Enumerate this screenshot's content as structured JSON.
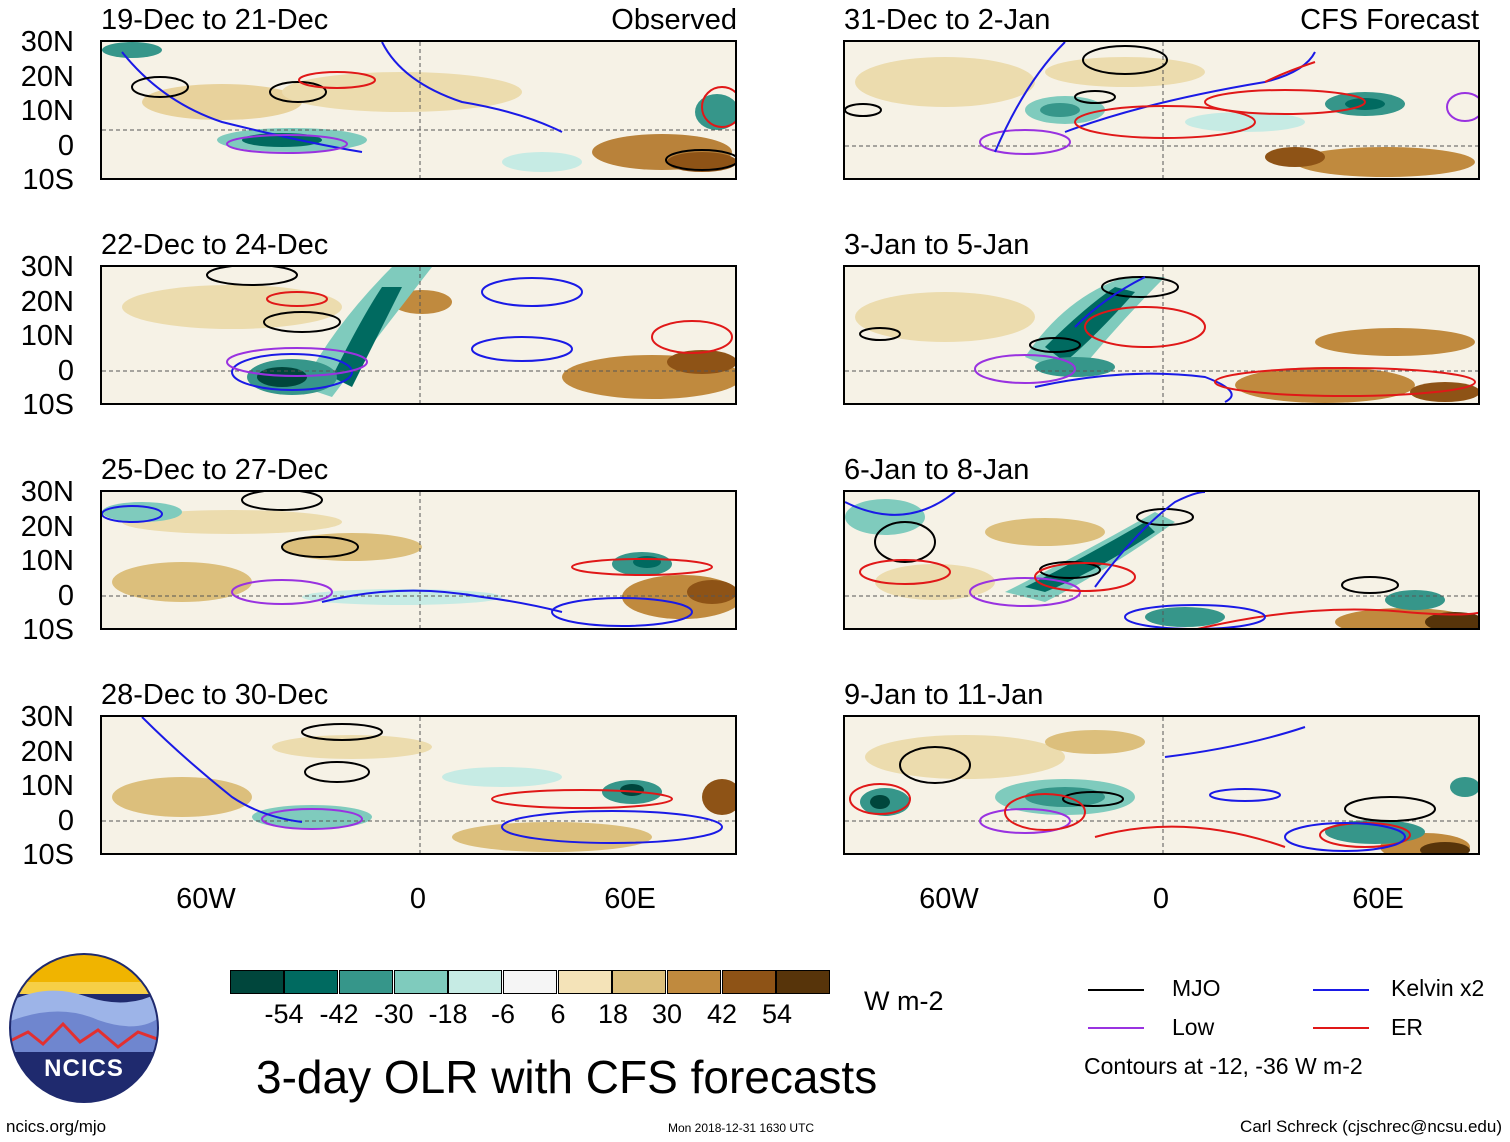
{
  "panels_left": [
    {
      "title": "19-Dec to 21-Dec",
      "tag": "Observed"
    },
    {
      "title": "22-Dec to 24-Dec",
      "tag": ""
    },
    {
      "title": "25-Dec to 27-Dec",
      "tag": ""
    },
    {
      "title": "28-Dec to 30-Dec",
      "tag": ""
    }
  ],
  "panels_right": [
    {
      "title": "31-Dec to 2-Jan",
      "tag": "CFS Forecast"
    },
    {
      "title": "3-Jan to 5-Jan",
      "tag": ""
    },
    {
      "title": "6-Jan to 8-Jan",
      "tag": ""
    },
    {
      "title": "9-Jan to 11-Jan",
      "tag": ""
    }
  ],
  "axes": {
    "lat_labels": [
      "30N",
      "20N",
      "10N",
      "0",
      "10S"
    ],
    "lon_labels": [
      "60W",
      "0",
      "60E"
    ],
    "lat_range": [
      -10,
      30
    ],
    "lon_range": [
      -90,
      90
    ]
  },
  "colorbar": {
    "colors": [
      "#00463c",
      "#006a60",
      "#36968a",
      "#7fcbbd",
      "#c6ebe4",
      "#f5f5f5",
      "#f4e3b8",
      "#dcbf7c",
      "#c08a3e",
      "#8e5316",
      "#57340a"
    ],
    "labels": [
      "-54",
      "-42",
      "-30",
      "-18",
      "-6",
      "6",
      "18",
      "30",
      "42",
      "54"
    ],
    "units": "W m-2"
  },
  "legend": {
    "items": [
      {
        "label": "MJO",
        "color": "#000000"
      },
      {
        "label": "Kelvin x2",
        "color": "#1a1ae6"
      },
      {
        "label": "Low",
        "color": "#9932e0"
      },
      {
        "label": "ER",
        "color": "#e01818"
      }
    ],
    "note": "Contours at -12, -36 W m-2"
  },
  "logo": {
    "text": "NCICS"
  },
  "main_title": "3-day OLR with CFS forecasts",
  "footer": {
    "left": "ncics.org/mjo",
    "center": "Mon 2018-12-31 1630 UTC",
    "right": "Carl Schreck (cjschrec@ncsu.edu)"
  }
}
